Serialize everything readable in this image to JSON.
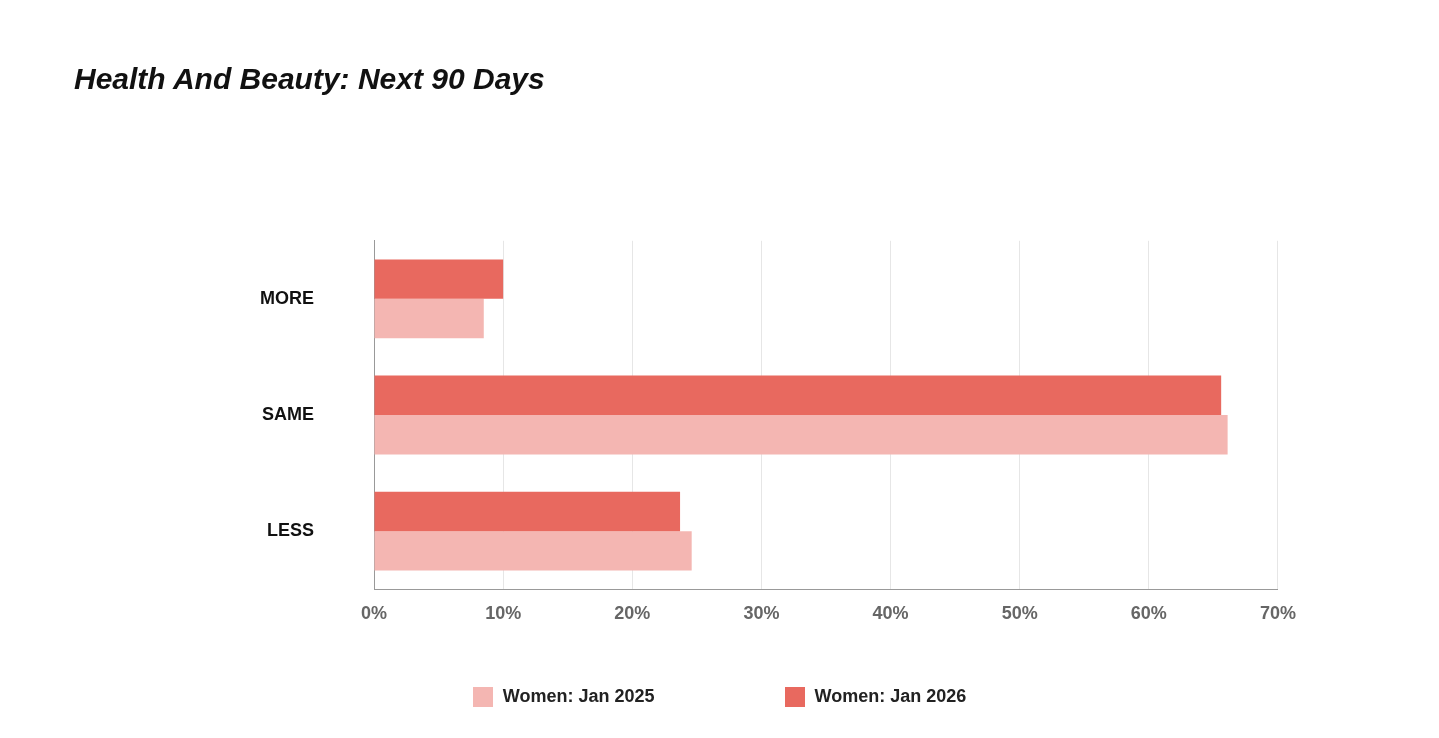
{
  "chart_data": {
    "type": "bar",
    "orientation": "horizontal",
    "title": "Health And Beauty: Next 90 Days",
    "categories": [
      "MORE",
      "SAME",
      "LESS"
    ],
    "series": [
      {
        "name": "Women: Jan 2025",
        "color": "#f4b6b2",
        "values": [
          8.5,
          66.1,
          24.6
        ]
      },
      {
        "name": "Women: Jan 2026",
        "color": "#e8695f",
        "values": [
          10,
          65.6,
          23.7
        ]
      }
    ],
    "xlim": [
      0,
      70
    ],
    "xticks": [
      {
        "value": 0,
        "label": "0%"
      },
      {
        "value": 10,
        "label": "10%"
      },
      {
        "value": 20,
        "label": "20%"
      },
      {
        "value": 30,
        "label": "30%"
      },
      {
        "value": 40,
        "label": "40%"
      },
      {
        "value": 50,
        "label": "50%"
      },
      {
        "value": 60,
        "label": "60%"
      },
      {
        "value": 70,
        "label": "70%"
      }
    ],
    "grid": "x",
    "legend": "bottom"
  }
}
